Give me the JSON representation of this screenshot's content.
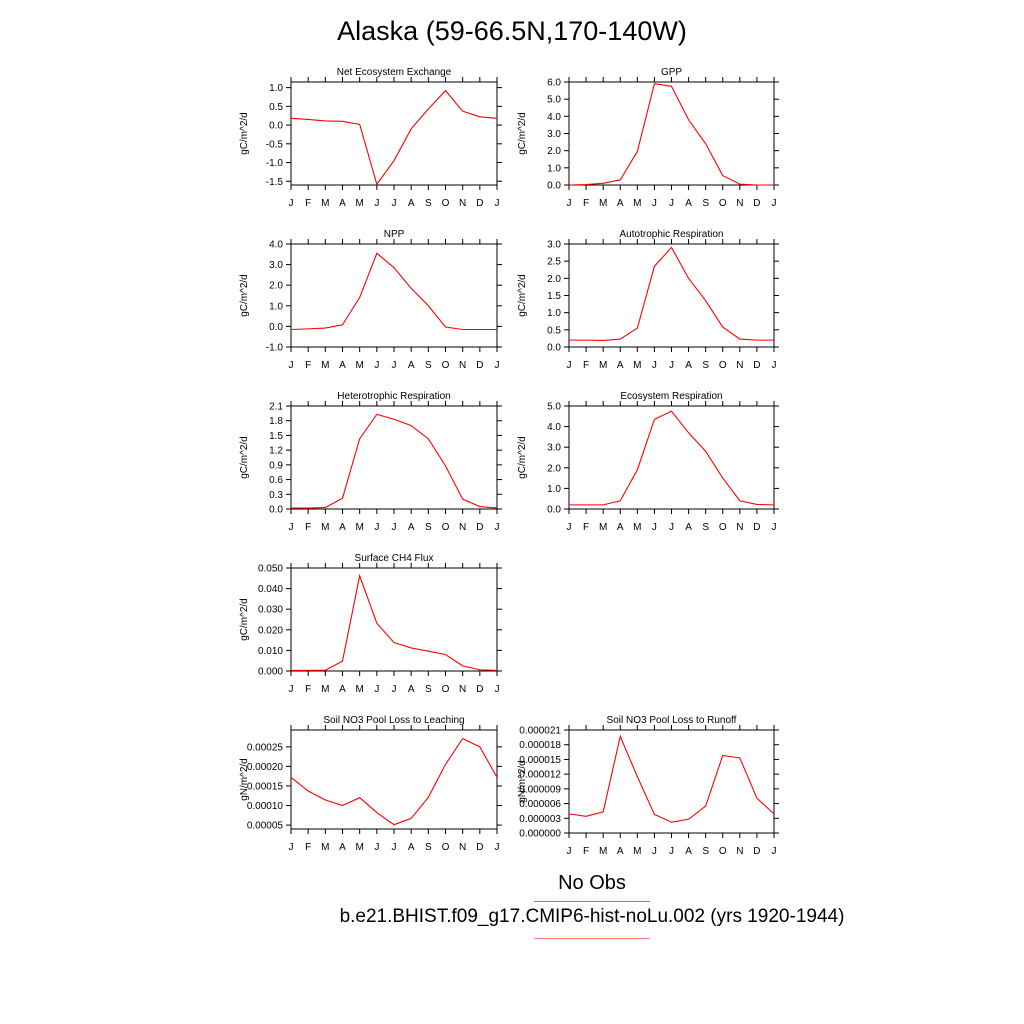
{
  "title": "Alaska (59-66.5N,170-140W)",
  "months": [
    "J",
    "F",
    "M",
    "A",
    "M",
    "J",
    "J",
    "A",
    "S",
    "O",
    "N",
    "D",
    "J"
  ],
  "legend": {
    "obs_label": "No Obs",
    "obs_color": "#7b7bf2",
    "model_label": "b.e21.BHIST.f09_g17.CMIP6-hist-noLu.002 (yrs 1920-1944)",
    "model_color": "#f07a7a"
  },
  "line_color": "#ff0000",
  "chart_data": [
    {
      "type": "line",
      "title": "Net Ecosystem Exchange",
      "ylabel": "gC/m^2/d",
      "ylim": [
        -1.6,
        1.15
      ],
      "yticks": [
        -1.5,
        -1.0,
        -0.5,
        0.0,
        0.5,
        1.0
      ],
      "ytick_labels": [
        "-1.5",
        "-1.0",
        "-0.5",
        "0.0",
        "0.5",
        "1.0"
      ],
      "values": [
        0.18,
        0.15,
        0.11,
        0.1,
        0.02,
        -1.58,
        -0.95,
        -0.1,
        0.43,
        0.92,
        0.37,
        0.22,
        0.18
      ]
    },
    {
      "type": "line",
      "title": "GPP",
      "ylabel": "gC/m^2/d",
      "ylim": [
        0,
        6
      ],
      "yticks": [
        0,
        1,
        2,
        3,
        4,
        5,
        6
      ],
      "ytick_labels": [
        "0.0",
        "1.0",
        "2.0",
        "3.0",
        "4.0",
        "5.0",
        "6.0"
      ],
      "values": [
        0.0,
        0.03,
        0.1,
        0.3,
        1.95,
        5.9,
        5.75,
        3.8,
        2.4,
        0.55,
        0.05,
        0.0,
        0.0
      ]
    },
    {
      "type": "line",
      "title": "NPP",
      "ylabel": "gC/m^2/d",
      "ylim": [
        -1,
        4
      ],
      "yticks": [
        -1,
        0,
        1,
        2,
        3,
        4
      ],
      "ytick_labels": [
        "-1.0",
        "0.0",
        "1.0",
        "2.0",
        "3.0",
        "4.0"
      ],
      "values": [
        -0.15,
        -0.12,
        -0.08,
        0.08,
        1.4,
        3.55,
        2.85,
        1.85,
        1.0,
        -0.03,
        -0.15,
        -0.15,
        -0.15
      ]
    },
    {
      "type": "line",
      "title": "Autotrophic Respiration",
      "ylabel": "gC/m^2/d",
      "ylim": [
        0,
        3
      ],
      "yticks": [
        0,
        0.5,
        1,
        1.5,
        2,
        2.5,
        3
      ],
      "ytick_labels": [
        "0.0",
        "0.5",
        "1.0",
        "1.5",
        "2.0",
        "2.5",
        "3.0"
      ],
      "values": [
        0.2,
        0.2,
        0.19,
        0.23,
        0.55,
        2.35,
        2.9,
        2.0,
        1.35,
        0.58,
        0.23,
        0.2,
        0.2
      ]
    },
    {
      "type": "line",
      "title": "Heterotrophic Respiration",
      "ylabel": "gC/m^2/d",
      "ylim": [
        0,
        2.1
      ],
      "yticks": [
        0,
        0.3,
        0.6,
        0.9,
        1.2,
        1.5,
        1.8,
        2.1
      ],
      "ytick_labels": [
        "0.0",
        "0.3",
        "0.6",
        "0.9",
        "1.2",
        "1.5",
        "1.8",
        "2.1"
      ],
      "values": [
        0.02,
        0.02,
        0.03,
        0.22,
        1.43,
        1.93,
        1.83,
        1.7,
        1.43,
        0.88,
        0.2,
        0.05,
        0.02
      ]
    },
    {
      "type": "line",
      "title": "Ecosystem Respiration",
      "ylabel": "gC/m^2/d",
      "ylim": [
        0,
        5
      ],
      "yticks": [
        0,
        1,
        2,
        3,
        4,
        5
      ],
      "ytick_labels": [
        "0.0",
        "1.0",
        "2.0",
        "3.0",
        "4.0",
        "5.0"
      ],
      "values": [
        0.2,
        0.2,
        0.2,
        0.4,
        1.9,
        4.35,
        4.75,
        3.7,
        2.8,
        1.5,
        0.4,
        0.22,
        0.2
      ]
    },
    {
      "type": "line",
      "title": "Surface CH4 Flux",
      "ylabel": "gC/m^2/d",
      "ylim": [
        0,
        0.05
      ],
      "yticks": [
        0,
        0.01,
        0.02,
        0.03,
        0.04,
        0.05
      ],
      "ytick_labels": [
        "0.000",
        "0.010",
        "0.020",
        "0.030",
        "0.040",
        "0.050"
      ],
      "values": [
        0.0003,
        0.0003,
        0.0004,
        0.0048,
        0.0462,
        0.0232,
        0.0138,
        0.0112,
        0.0096,
        0.008,
        0.0025,
        0.0006,
        0.0003
      ]
    },
    {
      "type": "line",
      "title": "Soil NO3 Pool Loss to Leaching",
      "ylabel": "gN/m^2/d",
      "ylim": [
        4e-05,
        0.000293
      ],
      "yticks": [
        5e-05,
        0.0001,
        0.00015,
        0.0002,
        0.00025
      ],
      "ytick_labels": [
        "0.00005",
        "0.00010",
        "0.00015",
        "0.00020",
        "0.00025"
      ],
      "values": [
        0.000172,
        0.000137,
        0.000114,
        0.0001,
        0.00012,
        8.2e-05,
        5.1e-05,
        6.7e-05,
        0.000121,
        0.000205,
        0.000271,
        0.00025,
        0.000172
      ]
    },
    {
      "type": "line",
      "title": "Soil NO3 Pool Loss to Runoff",
      "ylabel": "gN/m^2/d",
      "ylim": [
        0,
        2.1e-05
      ],
      "yticks": [
        0,
        3e-06,
        6e-06,
        9e-06,
        1.2e-05,
        1.5e-05,
        1.8e-05,
        2.1e-05
      ],
      "ytick_labels": [
        "0.000000",
        "0.000003",
        "0.000006",
        "0.000009",
        "0.000012",
        "0.000015",
        "0.000018",
        "0.000021"
      ],
      "values": [
        3.9e-06,
        3.4e-06,
        4.3e-06,
        1.97e-05,
        1.15e-05,
        3.8e-06,
        2.2e-06,
        2.8e-06,
        5.5e-06,
        1.58e-05,
        1.53e-05,
        7.1e-06,
        3.9e-06
      ]
    }
  ]
}
